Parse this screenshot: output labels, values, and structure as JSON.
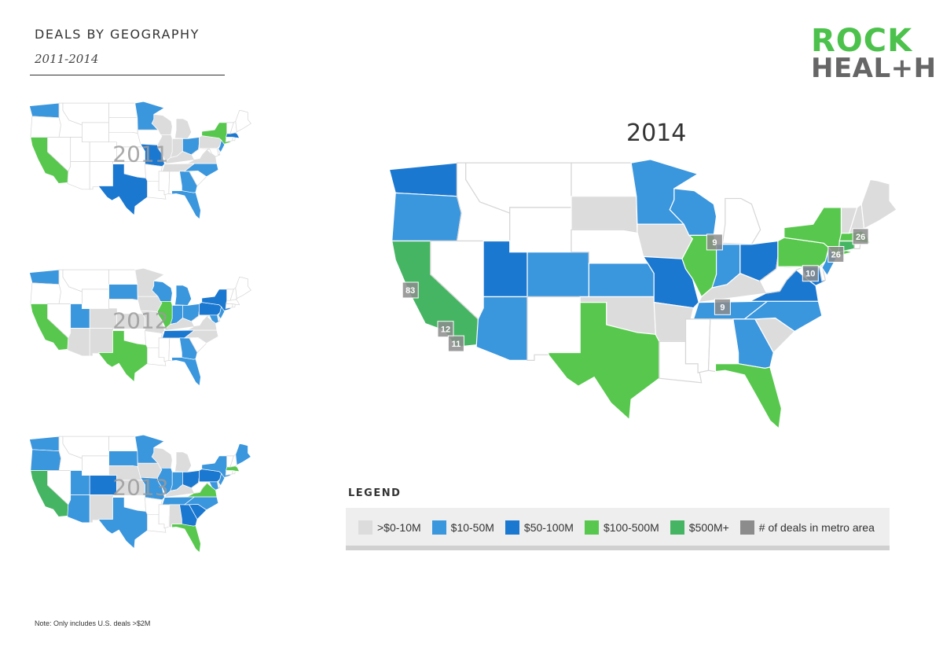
{
  "header": {
    "title": "DEALS BY GEOGRAPHY",
    "subtitle": "2011-2014"
  },
  "logo": {
    "line1": "ROCK",
    "line2": "HEAL+H",
    "colors": {
      "green": "#4cc24c",
      "gray": "#666666"
    }
  },
  "colors": {
    "tier0": "#dcdcdc",
    "tier1": "#3a96dd",
    "tier2": "#1b78d0",
    "tier3": "#57c84d",
    "tier4": "#45b563",
    "none": "#ffffff",
    "metro": "#8c8c8c"
  },
  "maps": [
    {
      "year": "2011",
      "states": {
        "WA": "tier1",
        "CA": "tier3",
        "TX": "tier2",
        "MN": "tier1",
        "MO": "tier2",
        "OH": "tier1",
        "NY": "tier3",
        "MA": "tier2",
        "NJ": "tier1",
        "GA": "tier1",
        "FL": "tier1",
        "NC": "tier1",
        "IL": "tier0",
        "IN": "tier0",
        "MI": "tier0",
        "WI": "tier0",
        "PA": "tier0",
        "TN": "tier0",
        "VA": "tier0",
        "KY": "tier0"
      }
    },
    {
      "year": "2012",
      "states": {
        "WA": "tier1",
        "CA": "tier3",
        "TX": "tier3",
        "UT": "tier1",
        "CO": "tier0",
        "SD": "tier1",
        "WI": "tier1",
        "IL": "tier3",
        "IN": "tier1",
        "OH": "tier1",
        "MI": "tier1",
        "PA": "tier2",
        "NY": "tier2",
        "MD": "tier1",
        "NJ": "tier1",
        "TN": "tier2",
        "GA": "tier1",
        "FL": "tier1",
        "NM": "tier0",
        "AZ": "tier0",
        "KS": "tier0",
        "MO": "tier0",
        "NC": "tier0",
        "VA": "tier0",
        "MN": "tier0",
        "IA": "tier0",
        "KY": "tier0"
      }
    },
    {
      "year": "2013",
      "states": {
        "WA": "tier1",
        "OR": "tier1",
        "CA": "tier4",
        "AZ": "tier1",
        "UT": "tier1",
        "CO": "tier2",
        "NM": "tier0",
        "TX": "tier1",
        "SD": "tier1",
        "MN": "tier1",
        "NE": "tier0",
        "KS": "tier0",
        "MO": "tier1",
        "IL": "tier1",
        "WI": "tier0",
        "MI": "tier0",
        "OH": "tier2",
        "PA": "tier2",
        "NY": "tier1",
        "ME": "tier1",
        "MA": "tier3",
        "NJ": "tier1",
        "VA": "tier3",
        "NC": "tier1",
        "SC": "tier2",
        "GA": "tier2",
        "AL": "tier0",
        "FL": "tier3",
        "TN": "tier1",
        "IN": "tier1",
        "KY": "tier0",
        "MD": "tier1",
        "IA": "tier0"
      }
    },
    {
      "year": "2014",
      "states": {
        "WA": "tier2",
        "OR": "tier1",
        "CA": "tier4",
        "AZ": "tier1",
        "UT": "tier2",
        "CO": "tier1",
        "TX": "tier3",
        "SD": "tier0",
        "MN": "tier1",
        "WI": "tier1",
        "KS": "tier1",
        "MO": "tier2",
        "OK": "tier0",
        "AR": "tier0",
        "IA": "tier0",
        "IL": "tier3",
        "IN": "tier1",
        "OH": "tier2",
        "KY": "tier0",
        "TN": "tier1",
        "NC": "tier1",
        "VA": "tier2",
        "GA": "tier1",
        "FL": "tier3",
        "SC": "tier0",
        "PA": "tier3",
        "NY": "tier3",
        "NJ": "tier1",
        "MD": "tier2",
        "MA": "tier3",
        "CT": "tier4",
        "NH": "tier0",
        "ME": "tier0",
        "VT": "tier0"
      },
      "metros": [
        {
          "label": "83",
          "lon": -122.3,
          "lat": 37.6
        },
        {
          "label": "12",
          "lon": -118.3,
          "lat": 34.1
        },
        {
          "label": "11",
          "lon": -117.1,
          "lat": 32.8
        },
        {
          "label": "9",
          "lon": -87.7,
          "lat": 41.9
        },
        {
          "label": "10",
          "lon": -76.8,
          "lat": 39.1
        },
        {
          "label": "9",
          "lon": -86.8,
          "lat": 36.1
        },
        {
          "label": "26",
          "lon": -73.9,
          "lat": 40.8
        },
        {
          "label": "26",
          "lon": -71.1,
          "lat": 42.4
        }
      ]
    }
  ],
  "legend": {
    "title": "LEGEND",
    "items": [
      {
        "label": ">$0-10M",
        "color": "tier0"
      },
      {
        "label": "$10-50M",
        "color": "tier1"
      },
      {
        "label": "$50-100M",
        "color": "tier2"
      },
      {
        "label": "$100-500M",
        "color": "tier3"
      },
      {
        "label": "$500M+",
        "color": "tier4"
      },
      {
        "label": "# of deals in metro area",
        "color": "metro"
      }
    ]
  },
  "note": "Note: Only includes U.S. deals >$2M"
}
